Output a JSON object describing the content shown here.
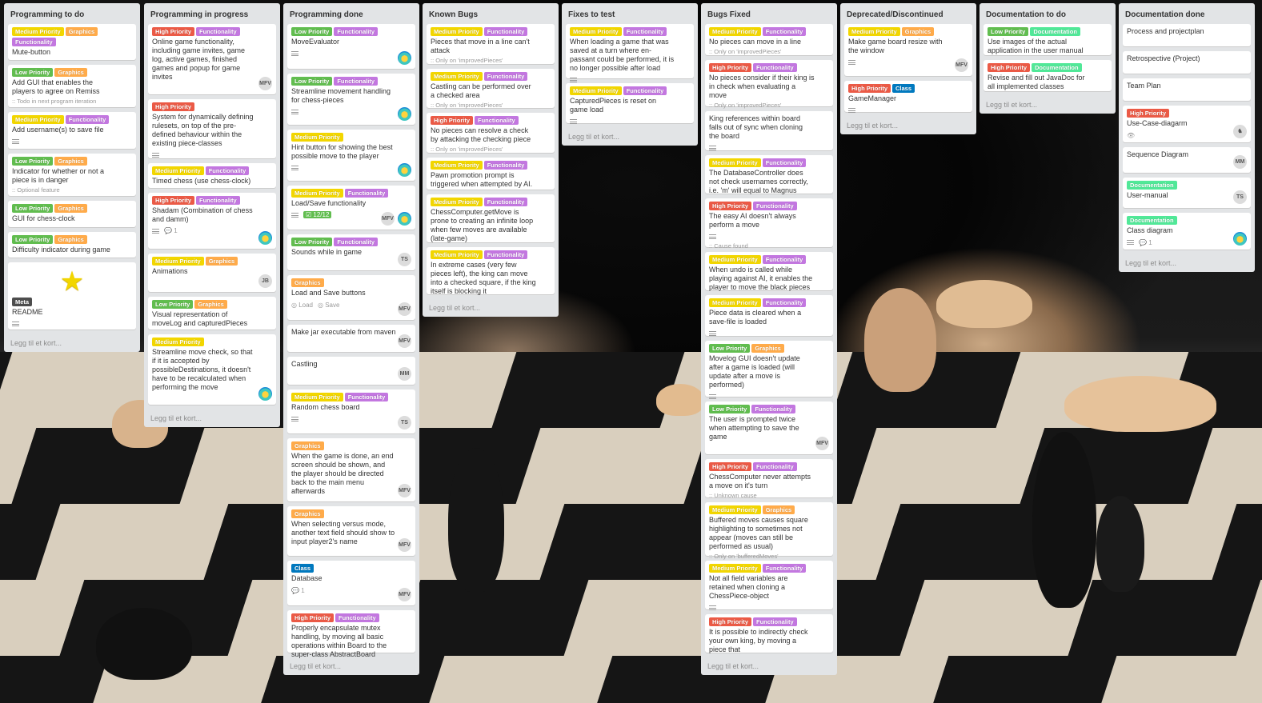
{
  "lists": [
    {
      "title": "Programming to do",
      "add": "Legg til et kort...",
      "cards": [
        {
          "labels": [
            [
              "Medium Priority",
              "yellow"
            ],
            [
              "Graphics",
              "orange"
            ],
            [
              "Functionality",
              "purple"
            ]
          ],
          "title": "Mute-button"
        },
        {
          "labels": [
            [
              "Low Priority",
              "green"
            ],
            [
              "Graphics",
              "orange"
            ]
          ],
          "title": "Add GUI that enables the players to agree on Remiss",
          "note": "Todo in next program iteration"
        },
        {
          "labels": [
            [
              "Medium Priority",
              "yellow"
            ],
            [
              "Functionality",
              "purple"
            ]
          ],
          "title": "Add username(s) to save file",
          "desc": true
        },
        {
          "labels": [
            [
              "Low Priority",
              "green"
            ],
            [
              "Graphics",
              "orange"
            ]
          ],
          "title": "Indicator for whether or not a piece is in danger",
          "note": "Optional feature"
        },
        {
          "labels": [
            [
              "Low Priority",
              "green"
            ],
            [
              "Graphics",
              "orange"
            ]
          ],
          "title": "GUI for chess-clock"
        },
        {
          "labels": [
            [
              "Low Priority",
              "green"
            ],
            [
              "Graphics",
              "orange"
            ]
          ],
          "title": "Difficulty indicator during game"
        },
        {
          "star": true,
          "labels": [
            [
              "Meta",
              "black"
            ]
          ],
          "title": "README",
          "desc": true
        }
      ]
    },
    {
      "title": "Programming in progress",
      "add": "Legg til et kort...",
      "cards": [
        {
          "labels": [
            [
              "High Priority",
              "red"
            ],
            [
              "Functionality",
              "purple"
            ]
          ],
          "title": "Online game functionality, including game invites, game log, active games, finished games and popup for game invites",
          "member": "MFV"
        },
        {
          "labels": [
            [
              "High Priority",
              "red"
            ]
          ],
          "title": "System for dynamically defining rulesets, on top of the pre-defined behaviour within the existing piece-classes",
          "desc": true
        },
        {
          "labels": [
            [
              "Medium Priority",
              "yellow"
            ],
            [
              "Functionality",
              "purple"
            ]
          ],
          "title": "Timed chess (use chess-clock)"
        },
        {
          "labels": [
            [
              "High Priority",
              "red"
            ],
            [
              "Functionality",
              "purple"
            ]
          ],
          "title": "Shadam (Combination of chess and damm)",
          "desc": true,
          "comments": "1",
          "avatar": true
        },
        {
          "labels": [
            [
              "Medium Priority",
              "yellow"
            ],
            [
              "Graphics",
              "orange"
            ]
          ],
          "title": "Animations",
          "member": "JB"
        },
        {
          "labels": [
            [
              "Low Priority",
              "green"
            ],
            [
              "Graphics",
              "orange"
            ]
          ],
          "title": "Visual representation of moveLog and capturedPieces"
        },
        {
          "labels": [
            [
              "Medium Priority",
              "yellow"
            ]
          ],
          "title": "Streamline move check, so that if it is accepted by possibleDestinations, it doesn't have to be recalculated when performing the move",
          "avatar": true
        }
      ]
    },
    {
      "title": "Programming done",
      "add": "Legg til et kort...",
      "cards": [
        {
          "labels": [
            [
              "Low Priority",
              "green"
            ],
            [
              "Functionality",
              "purple"
            ]
          ],
          "title": "MoveEvaluator",
          "desc": true,
          "avatar": true
        },
        {
          "labels": [
            [
              "Low Priority",
              "green"
            ],
            [
              "Functionality",
              "purple"
            ]
          ],
          "title": "Streamline movement handling for chess-pieces",
          "desc": true,
          "avatar": true
        },
        {
          "labels": [
            [
              "Medium Priority",
              "yellow"
            ]
          ],
          "title": "Hint button for showing the best possible move to the player",
          "desc": true,
          "avatar": true
        },
        {
          "labels": [
            [
              "Medium Priority",
              "yellow"
            ],
            [
              "Functionality",
              "purple"
            ]
          ],
          "title": "Load/Save functionality",
          "desc": true,
          "check": "12/12",
          "member": "MFV",
          "avatar": true
        },
        {
          "labels": [
            [
              "Low Priority",
              "green"
            ],
            [
              "Functionality",
              "purple"
            ]
          ],
          "title": "Sounds while in game",
          "member": "TS"
        },
        {
          "labels": [
            [
              "Graphics",
              "orange"
            ]
          ],
          "title": "Load and Save buttons",
          "tasks": [
            "Load",
            "Save"
          ],
          "member": "MFV"
        },
        {
          "labels": [],
          "title": "Make jar executable from maven",
          "member": "MFV"
        },
        {
          "labels": [],
          "title": "Castling",
          "member": "MM"
        },
        {
          "labels": [
            [
              "Medium Priority",
              "yellow"
            ],
            [
              "Functionality",
              "purple"
            ]
          ],
          "title": "Random chess board",
          "desc": true,
          "member": "TS"
        },
        {
          "labels": [
            [
              "Graphics",
              "orange"
            ]
          ],
          "title": "When the game is done, an end screen should be shown, and the player should be directed back to the main menu afterwards",
          "member": "MFV"
        },
        {
          "labels": [
            [
              "Graphics",
              "orange"
            ]
          ],
          "title": "When selecting versus mode, another text field should show to input player2's name",
          "member": "MFV"
        },
        {
          "labels": [
            [
              "Class",
              "blue"
            ]
          ],
          "title": "Database",
          "comments": "1",
          "member": "MFV"
        },
        {
          "labels": [
            [
              "High Priority",
              "red"
            ],
            [
              "Functionality",
              "purple"
            ]
          ],
          "title": "Properly encapsulate mutex handling, by moving all basic operations within Board to the super-class AbstractBoard"
        }
      ]
    },
    {
      "title": "Known Bugs",
      "add": "Legg til et kort...",
      "cards": [
        {
          "labels": [
            [
              "Medium Priority",
              "yellow"
            ],
            [
              "Functionality",
              "purple"
            ]
          ],
          "title": "Pieces that move in a line can't attack",
          "note": "Only on 'improvedPieces'"
        },
        {
          "labels": [
            [
              "Medium Priority",
              "yellow"
            ],
            [
              "Functionality",
              "purple"
            ]
          ],
          "title": "Castling can be performed over a checked area",
          "note": "Only on 'improvedPieces'"
        },
        {
          "labels": [
            [
              "High Priority",
              "red"
            ],
            [
              "Functionality",
              "purple"
            ]
          ],
          "title": "No pieces can resolve a check by attacking the checking piece",
          "note": "Only on 'improvedPieces'"
        },
        {
          "labels": [
            [
              "Medium Priority",
              "yellow"
            ],
            [
              "Functionality",
              "purple"
            ]
          ],
          "title": "Pawn promotion prompt is triggered when attempted by AI."
        },
        {
          "labels": [
            [
              "Medium Priority",
              "yellow"
            ],
            [
              "Functionality",
              "purple"
            ]
          ],
          "title": "ChessComputer.getMove is prone to creating an infinite loop when few moves are available (late-game)"
        },
        {
          "labels": [
            [
              "Medium Priority",
              "yellow"
            ],
            [
              "Functionality",
              "purple"
            ]
          ],
          "title": "In extreme cases (very few pieces left), the king can move into a checked square, if the king itself is blocking it"
        }
      ]
    },
    {
      "title": "Fixes to test",
      "add": "Legg til et kort...",
      "cards": [
        {
          "labels": [
            [
              "Medium Priority",
              "yellow"
            ],
            [
              "Functionality",
              "purple"
            ]
          ],
          "title": "When loading a game that was saved at a turn where en-passant could be performed, it is no longer possible after load",
          "desc": true
        },
        {
          "labels": [
            [
              "Medium Priority",
              "yellow"
            ],
            [
              "Functionality",
              "purple"
            ]
          ],
          "title": "CapturedPieces is reset on game load",
          "desc": true
        }
      ]
    },
    {
      "title": "Bugs Fixed",
      "add": "Legg til et kort...",
      "cards": [
        {
          "labels": [
            [
              "Medium Priority",
              "yellow"
            ],
            [
              "Functionality",
              "purple"
            ]
          ],
          "title": "No pieces can move in a line",
          "note": "Only on 'improvedPieces'"
        },
        {
          "labels": [
            [
              "High Priority",
              "red"
            ],
            [
              "Functionality",
              "purple"
            ]
          ],
          "title": "No pieces consider if their king is in check when evaluating a move",
          "note": "Only on 'improvedPieces'"
        },
        {
          "labels": [],
          "title": "King references within board falls out of sync when cloning the board",
          "desc": true
        },
        {
          "labels": [
            [
              "Medium Priority",
              "yellow"
            ],
            [
              "Functionality",
              "purple"
            ]
          ],
          "title": "The DatabaseController does not check usernames correctly, i.e. 'm' will equal to Magnus"
        },
        {
          "labels": [
            [
              "High Priority",
              "red"
            ],
            [
              "Functionality",
              "purple"
            ]
          ],
          "title": "The easy AI doesn't always perform a move",
          "desc": true,
          "note": "Cause found"
        },
        {
          "labels": [
            [
              "Medium Priority",
              "yellow"
            ],
            [
              "Functionality",
              "purple"
            ]
          ],
          "title": "When undo is called while playing against AI, it enables the player to move the black pieces"
        },
        {
          "labels": [
            [
              "Medium Priority",
              "yellow"
            ],
            [
              "Functionality",
              "purple"
            ]
          ],
          "title": "Piece data is cleared when a save-file is loaded",
          "desc": true
        },
        {
          "labels": [
            [
              "Low Priority",
              "green"
            ],
            [
              "Graphics",
              "orange"
            ]
          ],
          "title": "Movelog GUI doesn't update after a game is loaded (will update after a move is performed)",
          "desc": true
        },
        {
          "labels": [
            [
              "Low Priority",
              "green"
            ],
            [
              "Functionality",
              "purple"
            ]
          ],
          "title": "The user is prompted twice when attempting to save the game",
          "member": "MFV"
        },
        {
          "labels": [
            [
              "High Priority",
              "red"
            ],
            [
              "Functionality",
              "purple"
            ]
          ],
          "title": "ChessComputer never attempts a move on it's turn",
          "note": "Unknown cause"
        },
        {
          "labels": [
            [
              "Medium Priority",
              "yellow"
            ],
            [
              "Graphics",
              "orange"
            ]
          ],
          "title": "Buffered moves causes square highlighting to sometimes not appear (moves can still be performed as usual)",
          "note": "Only on 'bufferedMoves'"
        },
        {
          "labels": [
            [
              "Medium Priority",
              "yellow"
            ],
            [
              "Functionality",
              "purple"
            ]
          ],
          "title": "Not all field variables are retained when cloning a ChessPiece-object",
          "desc": true
        },
        {
          "labels": [
            [
              "High Priority",
              "red"
            ],
            [
              "Functionality",
              "purple"
            ]
          ],
          "title": "It is possible to indirectly check your own king, by moving a piece that"
        }
      ]
    },
    {
      "title": "Deprecated/Discontinued",
      "add": "Legg til et kort...",
      "cards": [
        {
          "labels": [
            [
              "Medium Priority",
              "yellow"
            ],
            [
              "Graphics",
              "orange"
            ]
          ],
          "title": "Make game board resize with the window",
          "desc": true,
          "member": "MFV"
        },
        {
          "labels": [
            [
              "High Priority",
              "red"
            ],
            [
              "Class",
              "blue"
            ]
          ],
          "title": "GameManager",
          "desc": true
        }
      ]
    },
    {
      "title": "Documentation to do",
      "add": "Legg til et kort...",
      "cards": [
        {
          "labels": [
            [
              "Low Priority",
              "green"
            ],
            [
              "Documentation",
              "teal"
            ]
          ],
          "title": "Use images of the actual application in the user manual"
        },
        {
          "labels": [
            [
              "High Priority",
              "red"
            ],
            [
              "Documentation",
              "teal"
            ]
          ],
          "title": "Revise and fill out JavaDoc for all implemented classes"
        }
      ]
    },
    {
      "title": "Documentation done",
      "add": "Legg til et kort...",
      "cards": [
        {
          "labels": [],
          "title": "Process and projectplan"
        },
        {
          "labels": [],
          "title": "Retrospective (Project)"
        },
        {
          "labels": [],
          "title": "Team Plan"
        },
        {
          "labels": [
            [
              "High Priority",
              "red"
            ]
          ],
          "title": "Use-Case-diagarm",
          "eye": true,
          "member": "♞"
        },
        {
          "labels": [],
          "title": "Sequence Diagram",
          "member": "MM"
        },
        {
          "labels": [
            [
              "Documentation",
              "teal"
            ]
          ],
          "title": "User-manual",
          "member": "TS"
        },
        {
          "labels": [
            [
              "Documentation",
              "teal"
            ]
          ],
          "title": "Class diagram",
          "desc": true,
          "comments": "1",
          "avatar": true
        }
      ]
    }
  ]
}
